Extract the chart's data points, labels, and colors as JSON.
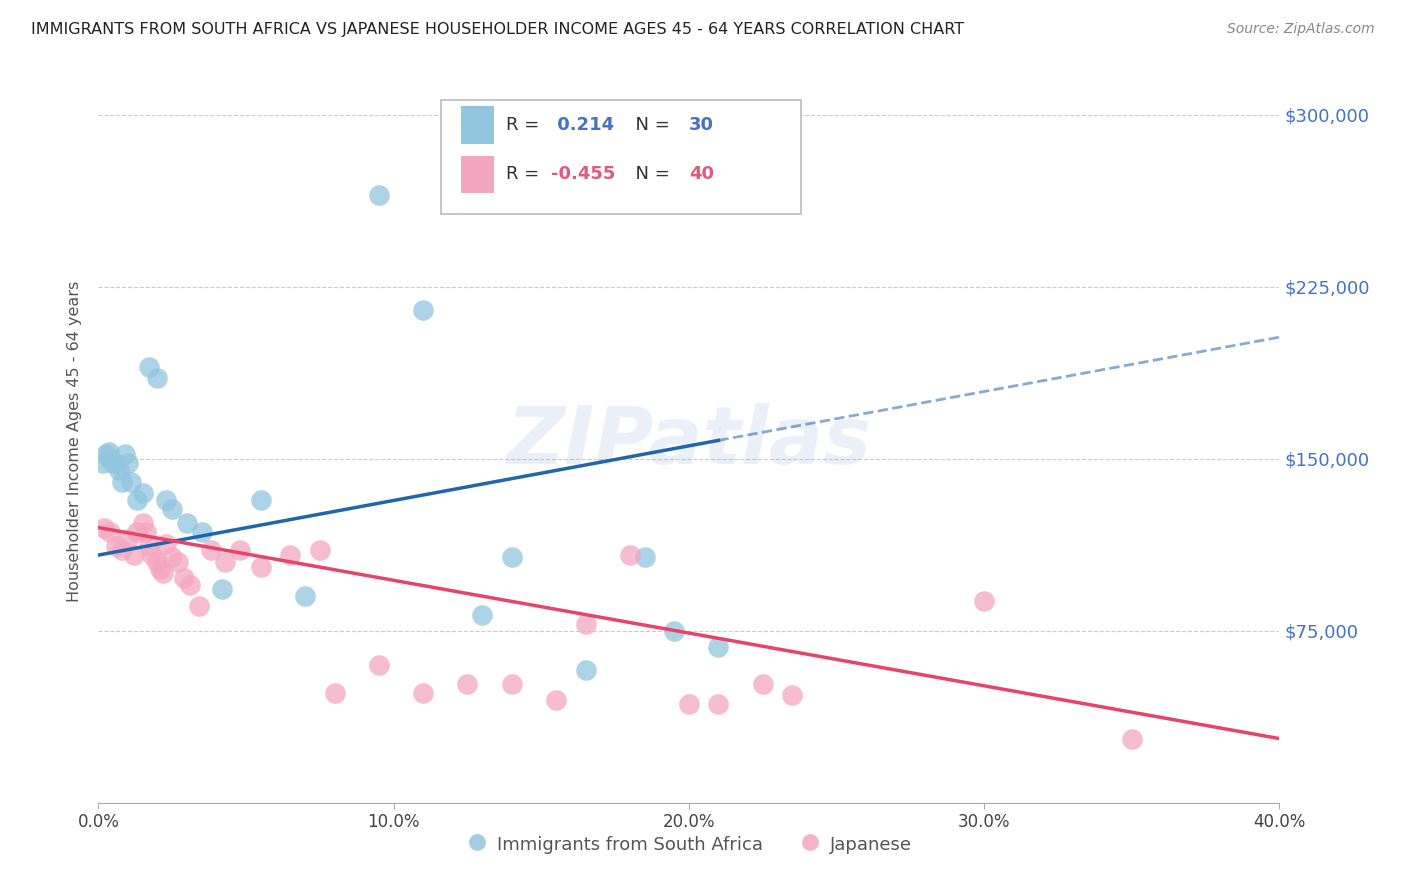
{
  "title": "IMMIGRANTS FROM SOUTH AFRICA VS JAPANESE HOUSEHOLDER INCOME AGES 45 - 64 YEARS CORRELATION CHART",
  "source": "Source: ZipAtlas.com",
  "xlabel_ticks": [
    "0.0%",
    "10.0%",
    "20.0%",
    "30.0%",
    "40.0%"
  ],
  "xlabel_vals": [
    0.0,
    10.0,
    20.0,
    30.0,
    40.0
  ],
  "ylabel": "Householder Income Ages 45 - 64 years",
  "yticks": [
    0,
    75000,
    150000,
    225000,
    300000
  ],
  "ytick_labels": [
    "",
    "$75,000",
    "$150,000",
    "$225,000",
    "$300,000"
  ],
  "xmin": 0.0,
  "xmax": 40.0,
  "ymin": 0,
  "ymax": 315000,
  "blue_R": 0.214,
  "blue_N": 30,
  "pink_R": -0.455,
  "pink_N": 40,
  "blue_color": "#92c5de",
  "pink_color": "#f4a6c0",
  "blue_line_color": "#2166ac",
  "pink_line_color": "#e8436a",
  "legend_label_blue": "Immigrants from South Africa",
  "legend_label_pink": "Japanese",
  "watermark": "ZIPatlas",
  "blue_scatter_x": [
    0.15,
    0.25,
    0.35,
    0.4,
    0.5,
    0.6,
    0.7,
    0.8,
    0.9,
    1.0,
    1.1,
    1.3,
    1.5,
    1.7,
    2.0,
    2.3,
    2.5,
    3.0,
    3.5,
    4.2,
    5.5,
    7.0,
    9.5,
    11.0,
    13.0,
    14.0,
    16.5,
    18.5,
    19.5,
    21.0
  ],
  "blue_scatter_y": [
    148000,
    152000,
    153000,
    150000,
    148000,
    148000,
    145000,
    140000,
    152000,
    148000,
    140000,
    132000,
    135000,
    190000,
    185000,
    132000,
    128000,
    122000,
    118000,
    93000,
    132000,
    90000,
    265000,
    215000,
    82000,
    107000,
    58000,
    107000,
    75000,
    68000
  ],
  "pink_scatter_x": [
    0.2,
    0.4,
    0.6,
    0.8,
    1.0,
    1.2,
    1.3,
    1.5,
    1.6,
    1.7,
    1.8,
    2.0,
    2.1,
    2.2,
    2.3,
    2.5,
    2.7,
    2.9,
    3.1,
    3.4,
    3.8,
    4.3,
    4.8,
    5.5,
    6.5,
    7.5,
    8.0,
    9.5,
    11.0,
    12.5,
    14.0,
    15.5,
    16.5,
    18.0,
    20.0,
    21.0,
    22.5,
    23.5,
    30.0,
    35.0
  ],
  "pink_scatter_y": [
    120000,
    118000,
    112000,
    110000,
    115000,
    108000,
    118000,
    122000,
    118000,
    112000,
    108000,
    105000,
    102000,
    100000,
    113000,
    107000,
    105000,
    98000,
    95000,
    86000,
    110000,
    105000,
    110000,
    103000,
    108000,
    110000,
    48000,
    60000,
    48000,
    52000,
    52000,
    45000,
    78000,
    108000,
    43000,
    43000,
    52000,
    47000,
    88000,
    28000
  ],
  "blue_line_x0": 0.0,
  "blue_line_y0": 108000,
  "blue_line_x1": 21.0,
  "blue_line_y1": 158000,
  "blue_dash_x0": 21.0,
  "blue_dash_y0": 158000,
  "blue_dash_x1": 40.0,
  "blue_dash_y1": 203000,
  "pink_line_x0": 0.0,
  "pink_line_y0": 120000,
  "pink_line_x1": 40.0,
  "pink_line_y1": 28000
}
